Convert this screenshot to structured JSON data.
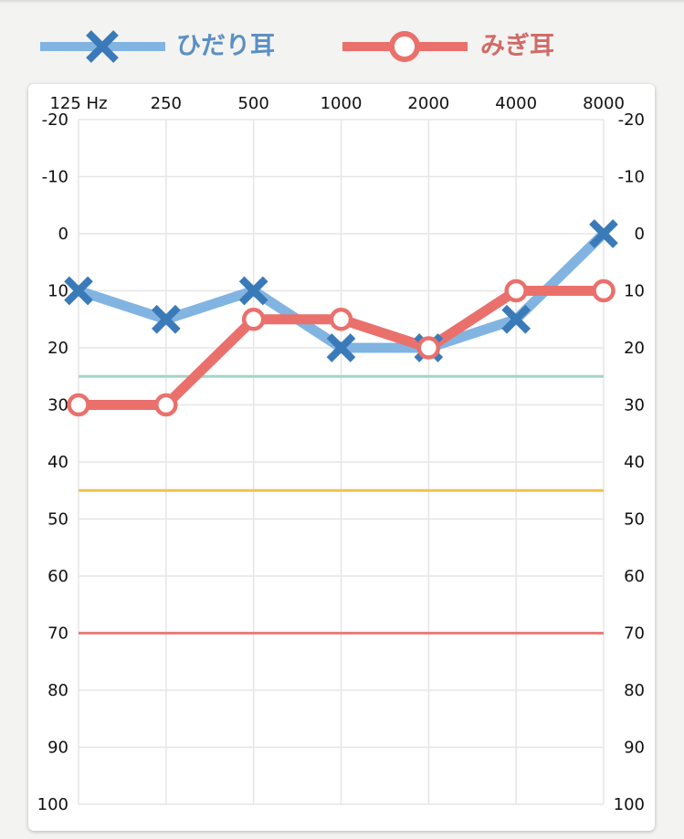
{
  "legend": {
    "left": {
      "label": "ひだり耳",
      "color": "#82b4e2",
      "marker_color": "#3b7ab8",
      "marker": "x-icon"
    },
    "right": {
      "label": "みぎ耳",
      "color": "#ea706c",
      "marker_color": "#ea706c",
      "marker": "circle-icon"
    }
  },
  "chart_data": {
    "type": "line",
    "title": "",
    "xlabel": "",
    "ylabel": "",
    "x": [
      "125 Hz",
      "250",
      "500",
      "1000",
      "2000",
      "4000",
      "8000"
    ],
    "ylim": [
      -20,
      100
    ],
    "y_inverted": true,
    "yticks": [
      "-20",
      "-10",
      "0",
      "10",
      "20",
      "30",
      "40",
      "50",
      "60",
      "70",
      "80",
      "90",
      "100"
    ],
    "grid": true,
    "series": [
      {
        "name": "ひだり耳",
        "values": [
          10,
          15,
          10,
          20,
          20,
          15,
          0
        ],
        "color": "#82b4e2",
        "marker_color": "#3b7ab8",
        "marker": "x"
      },
      {
        "name": "みぎ耳",
        "values": [
          30,
          30,
          15,
          15,
          20,
          10,
          10
        ],
        "color": "#ea706c",
        "marker_color": "#ea706c",
        "marker": "circle"
      }
    ],
    "reference_lines": [
      {
        "value": 25,
        "color": "#a3d6c4"
      },
      {
        "value": 45,
        "color": "#f1c14d"
      },
      {
        "value": 70,
        "color": "#ea7e7a"
      }
    ]
  }
}
